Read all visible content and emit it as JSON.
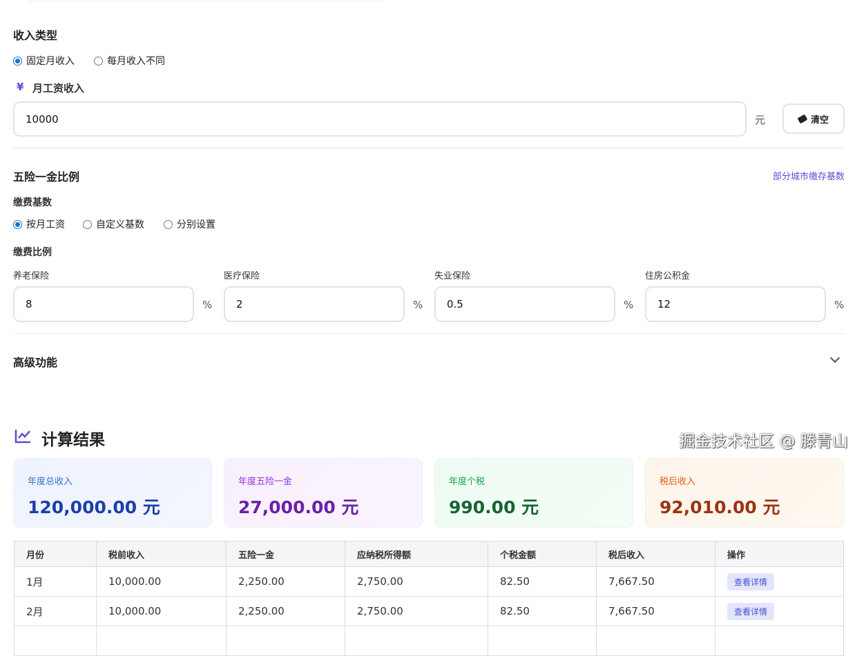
{
  "income_type": {
    "title": "收入类型",
    "options": [
      "固定月收入",
      "每月收入不同"
    ],
    "selected": "固定月收入"
  },
  "salary": {
    "icon": "yen-icon",
    "currency_symbol": "¥",
    "label": "月工资收入",
    "value": "10000",
    "unit": "元",
    "clear_label": "清空"
  },
  "insurance": {
    "title": "五险一金比例",
    "link": "部分城市缴存基数",
    "base_label": "缴费基数",
    "base_options": [
      "按月工资",
      "自定义基数",
      "分别设置"
    ],
    "base_selected": "按月工资",
    "ratio_label": "缴费比例",
    "ratios": [
      {
        "label": "养老保险",
        "value": "8",
        "unit": "%"
      },
      {
        "label": "医疗保险",
        "value": "2",
        "unit": "%"
      },
      {
        "label": "失业保险",
        "value": "0.5",
        "unit": "%"
      },
      {
        "label": "住房公积金",
        "value": "12",
        "unit": "%"
      }
    ]
  },
  "advanced": {
    "title": "高级功能"
  },
  "results": {
    "title": "计算结果",
    "cards": [
      {
        "label": "年度总收入",
        "value": "120,000.00 元",
        "color": "#1e3fa8"
      },
      {
        "label": "年度五险一金",
        "value": "27,000.00 元",
        "color": "#6b21a8"
      },
      {
        "label": "年度个税",
        "value": "990.00 元",
        "color": "#166534"
      },
      {
        "label": "税后收入",
        "value": "92,010.00 元",
        "color": "#9a3412"
      }
    ],
    "table": {
      "headers": [
        "月份",
        "税前收入",
        "五险一金",
        "应纳税所得额",
        "个税金额",
        "税后收入",
        "操作"
      ],
      "rows": [
        [
          "1月",
          "10,000.00",
          "2,250.00",
          "2,750.00",
          "82.50",
          "7,667.50",
          "查看详情"
        ],
        [
          "2月",
          "10,000.00",
          "2,250.00",
          "2,750.00",
          "82.50",
          "7,667.50",
          "查看详情"
        ]
      ]
    }
  },
  "watermark": "掘金技术社区 @ 滕青山"
}
